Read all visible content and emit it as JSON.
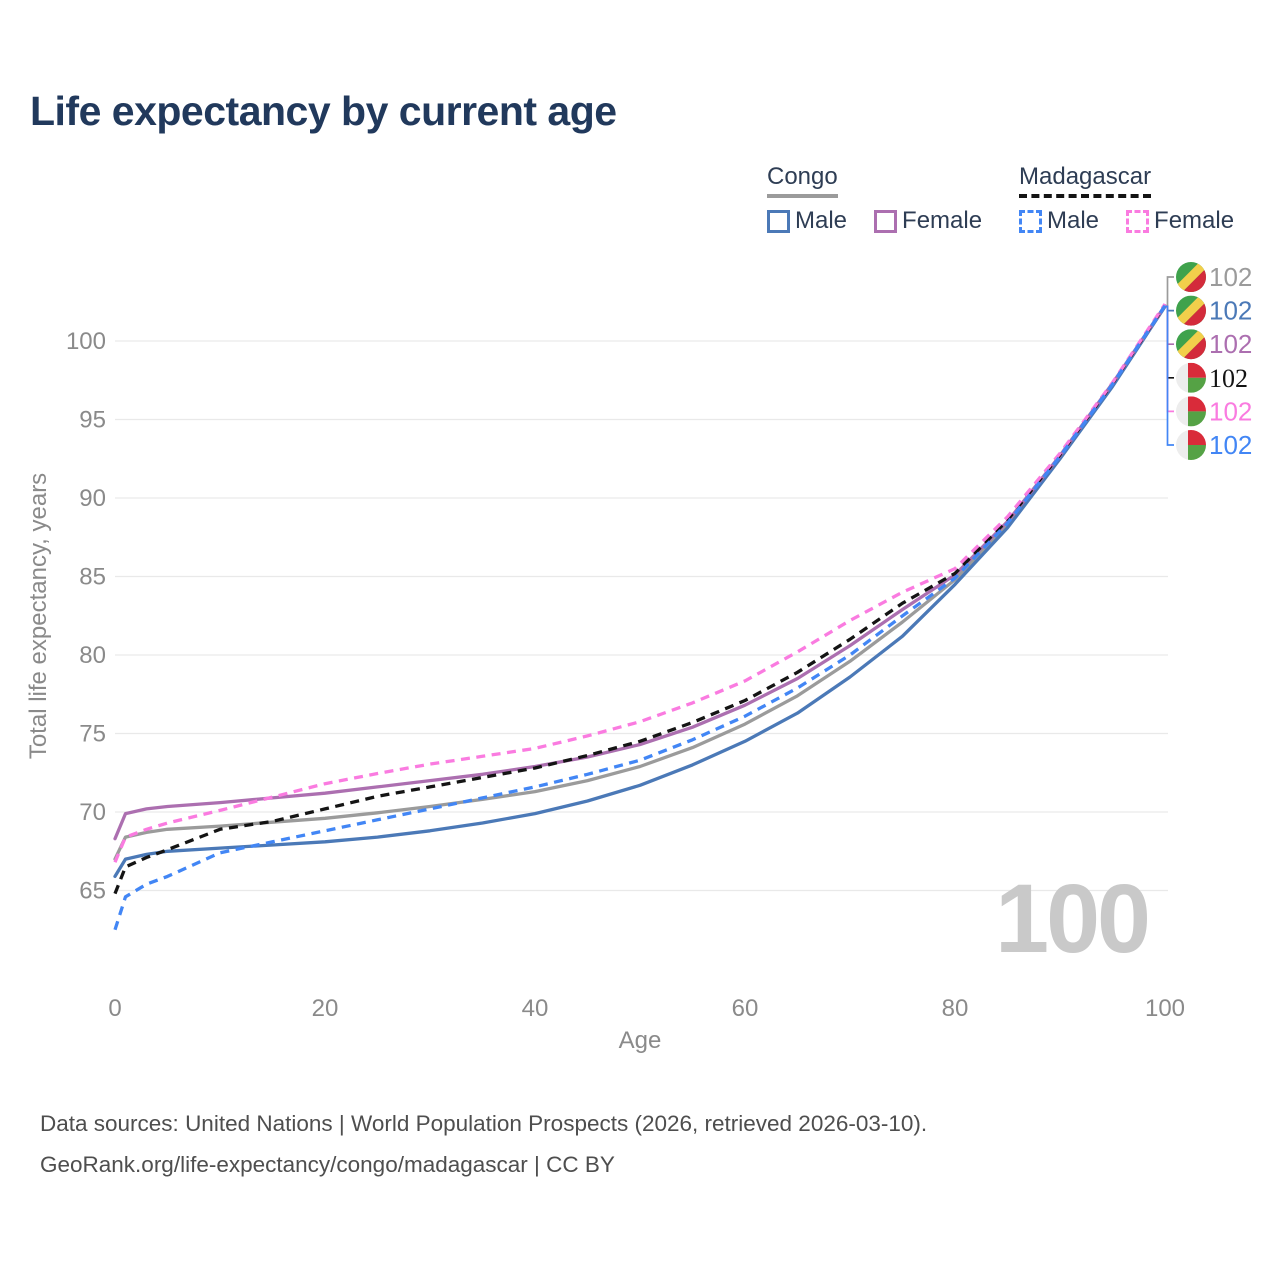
{
  "title": "Life expectancy by current age",
  "legend": {
    "groups": [
      {
        "name": "Congo",
        "line_color": "#9b9b9b",
        "line_style": "solid",
        "items": [
          {
            "label": "Male",
            "color": "#4b79b7"
          },
          {
            "label": "Female",
            "color": "#ac6fb0"
          }
        ]
      },
      {
        "name": "Madagascar",
        "line_color": "#141414",
        "line_style": "dashed",
        "items": [
          {
            "label": "Male",
            "color": "#4286f5"
          },
          {
            "label": "Female",
            "color": "#fa7be0"
          }
        ]
      }
    ]
  },
  "watermark": "100",
  "footer": {
    "line1": "Data sources: United Nations | World Population Prospects (2026, retrieved 2026-03-10).",
    "line2": "GeoRank.org/life-expectancy/congo/madagascar | CC BY"
  },
  "chart_data": {
    "type": "line",
    "title": "Life expectancy by current age",
    "xlabel": "Age",
    "ylabel": "Total life expectancy, years",
    "xlim": [
      0,
      100
    ],
    "ylim": [
      61,
      103
    ],
    "xticks": [
      0,
      20,
      40,
      60,
      80,
      100
    ],
    "yticks": [
      100,
      95,
      90,
      85,
      80,
      75,
      70,
      65
    ],
    "grid": "horizontal",
    "legend_position": "top-right",
    "x": [
      0,
      1,
      3,
      5,
      10,
      15,
      20,
      25,
      30,
      35,
      40,
      45,
      50,
      55,
      60,
      65,
      70,
      75,
      80,
      85,
      90,
      95,
      100
    ],
    "series": [
      {
        "name": "Congo — Both sexes",
        "country": "Congo",
        "sex": "Both",
        "color": "#9b9b9b",
        "dashed": false,
        "flag": "congo",
        "end_label": "102",
        "label_slot": 0,
        "values": [
          67.0,
          68.4,
          68.7,
          68.9,
          69.1,
          69.35,
          69.6,
          69.95,
          70.35,
          70.8,
          71.3,
          72.0,
          72.9,
          74.1,
          75.6,
          77.4,
          79.6,
          82.1,
          84.8,
          88.3,
          92.6,
          97.2,
          102.2
        ]
      },
      {
        "name": "Congo — Male",
        "country": "Congo",
        "sex": "Male",
        "color": "#4b79b7",
        "dashed": false,
        "flag": "congo",
        "end_label": "102",
        "label_slot": 1,
        "values": [
          65.9,
          67.0,
          67.3,
          67.5,
          67.7,
          67.9,
          68.1,
          68.4,
          68.8,
          69.3,
          69.9,
          70.7,
          71.7,
          73.0,
          74.5,
          76.3,
          78.6,
          81.2,
          84.5,
          88.1,
          92.5,
          97.1,
          102.2
        ]
      },
      {
        "name": "Congo — Female",
        "country": "Congo",
        "sex": "Female",
        "color": "#ac6fb0",
        "dashed": false,
        "flag": "congo",
        "end_label": "102",
        "label_slot": 2,
        "values": [
          68.3,
          69.9,
          70.2,
          70.35,
          70.6,
          70.9,
          71.2,
          71.6,
          72.0,
          72.4,
          72.9,
          73.5,
          74.3,
          75.4,
          76.8,
          78.5,
          80.6,
          82.9,
          85.1,
          88.5,
          92.7,
          97.3,
          102.25
        ]
      },
      {
        "name": "Madagascar — Both sexes",
        "country": "Madagascar",
        "sex": "Both",
        "color": "#141414",
        "dashed": true,
        "flag": "madagascar",
        "end_label": "102",
        "label_slot": 3,
        "values": [
          64.8,
          66.5,
          67.1,
          67.6,
          68.9,
          69.4,
          70.2,
          71.0,
          71.6,
          72.2,
          72.8,
          73.6,
          74.5,
          75.7,
          77.1,
          78.9,
          81.0,
          83.3,
          85.2,
          88.6,
          92.75,
          97.3,
          102.3
        ]
      },
      {
        "name": "Madagascar — Female",
        "country": "Madagascar",
        "sex": "Female",
        "color": "#fa7be0",
        "dashed": true,
        "flag": "madagascar",
        "end_label": "102",
        "label_slot": 4,
        "values": [
          66.8,
          68.4,
          68.9,
          69.3,
          70.1,
          70.95,
          71.8,
          72.45,
          73.05,
          73.55,
          74.05,
          74.85,
          75.75,
          76.95,
          78.35,
          80.2,
          82.2,
          84.0,
          85.5,
          88.8,
          92.85,
          97.35,
          102.35
        ]
      },
      {
        "name": "Madagascar — Male",
        "country": "Madagascar",
        "sex": "Male",
        "color": "#4286f5",
        "dashed": true,
        "flag": "madagascar",
        "end_label": "102",
        "label_slot": 5,
        "values": [
          62.5,
          64.6,
          65.4,
          65.9,
          67.4,
          68.1,
          68.8,
          69.5,
          70.2,
          70.9,
          71.6,
          72.4,
          73.3,
          74.6,
          76.1,
          77.9,
          80.0,
          82.5,
          84.9,
          88.4,
          92.65,
          97.25,
          102.25
        ]
      }
    ]
  }
}
